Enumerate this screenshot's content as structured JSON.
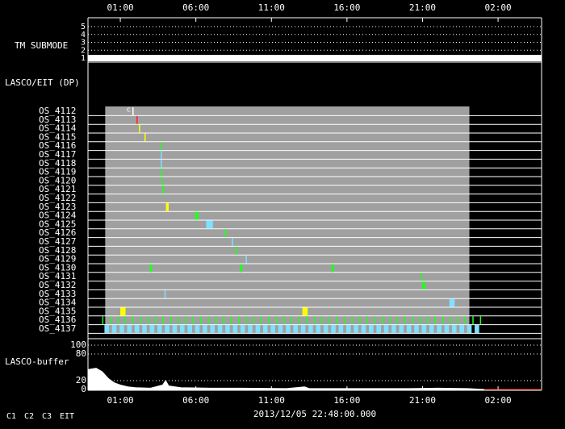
{
  "chart_data": {
    "type": "timeline",
    "xlabel": "2013/12/05 22:48:00.000",
    "xlim": [
      -1.14,
      28.88
    ],
    "xticks": [
      {
        "value": 1,
        "label": "01:00"
      },
      {
        "value": 6,
        "label": "06:00"
      },
      {
        "value": 11,
        "label": "11:00"
      },
      {
        "value": 16,
        "label": "16:00"
      },
      {
        "value": 21,
        "label": "21:00"
      },
      {
        "value": 26,
        "label": "02:00"
      }
    ],
    "legend": [
      {
        "name": "C1",
        "color": "#ff3030"
      },
      {
        "name": "C2",
        "color": "#30ff30"
      },
      {
        "name": "C3",
        "color": "#80e0ff"
      },
      {
        "name": "EIT",
        "color": "#ffffff"
      }
    ],
    "panels": [
      {
        "type": "step",
        "label": "TM SUBMODE",
        "ylim": [
          1,
          5
        ],
        "yticks": [
          1,
          2,
          3,
          4,
          5
        ],
        "color": "#ffffff",
        "x": [
          -1.14,
          28.88
        ],
        "values": [
          1,
          1
        ]
      },
      {
        "type": "events",
        "label": "LASCO/EIT (DP)",
        "shade": [
          0,
          24.1
        ],
        "rows": [
          {
            "name": "OS_4112",
            "color": "#ffffff",
            "duration": 0.05,
            "starts": [
              1.8
            ],
            "mark_label": "c"
          },
          {
            "name": "OS_4113",
            "color": "#ff2020",
            "duration": 0.08,
            "starts": [
              2.07
            ]
          },
          {
            "name": "OS_4114",
            "color": "#ffff00",
            "duration": 0.08,
            "starts": [
              2.23
            ]
          },
          {
            "name": "OS_4115",
            "color": "#ffff00",
            "duration": 0.05,
            "starts": [
              2.6
            ]
          },
          {
            "name": "OS_4116",
            "color": "#20ff20",
            "duration": 0.06,
            "starts": [
              3.67
            ]
          },
          {
            "name": "OS_4117",
            "color": "#80e0ff",
            "duration": 0.05,
            "starts": [
              3.68
            ]
          },
          {
            "name": "OS_4118",
            "color": "#80e0ff",
            "duration": 0.05,
            "starts": [
              3.68
            ]
          },
          {
            "name": "OS_4119",
            "color": "#20ff20",
            "duration": 0.05,
            "starts": [
              3.7
            ]
          },
          {
            "name": "OS_4120",
            "color": "#20ff20",
            "duration": 0.05,
            "starts": [
              3.72
            ]
          },
          {
            "name": "OS_4121",
            "color": "#20ff20",
            "duration": 0.1,
            "starts": [
              3.8
            ]
          },
          {
            "name": "OS_4122",
            "color": "#20ff20",
            "duration": 0.1,
            "starts": []
          },
          {
            "name": "OS_4123",
            "color": "#ffff00",
            "duration": 0.18,
            "starts": [
              4.02
            ]
          },
          {
            "name": "OS_4124",
            "color": "#20ff20",
            "duration": 0.22,
            "starts": [
              5.95
            ]
          },
          {
            "name": "OS_4125",
            "color": "#80e0ff",
            "duration": 0.45,
            "starts": [
              6.68
            ]
          },
          {
            "name": "OS_4126",
            "color": "#20ff20",
            "duration": 0.1,
            "starts": [
              7.92
            ]
          },
          {
            "name": "OS_4127",
            "color": "#80e0ff",
            "duration": 0.08,
            "starts": [
              8.38
            ]
          },
          {
            "name": "OS_4128",
            "color": "#20ff20",
            "duration": 0.1,
            "starts": [
              8.62
            ]
          },
          {
            "name": "OS_4129",
            "color": "#80e0ff",
            "duration": 0.06,
            "starts": [
              9.3
            ]
          },
          {
            "name": "OS_4130",
            "color": "#20ff20",
            "duration": 0.15,
            "starts": [
              2.95,
              8.92,
              14.98
            ]
          },
          {
            "name": "OS_4131",
            "color": "#20ff20",
            "duration": 0.06,
            "starts": [
              20.9
            ]
          },
          {
            "name": "OS_4132",
            "color": "#20ff20",
            "duration": 0.2,
            "starts": [
              20.98
            ]
          },
          {
            "name": "OS_4133",
            "color": "#80e0ff",
            "duration": 0.08,
            "starts": [
              3.92
            ]
          },
          {
            "name": "OS_4134",
            "color": "#80e0ff",
            "duration": 0.35,
            "starts": [
              22.78
            ]
          },
          {
            "name": "OS_4135",
            "color": "#ffff00",
            "duration": 0.35,
            "starts": [
              1.0,
              13.05
            ]
          },
          {
            "name": "OS_4136",
            "color": "#20ff20",
            "duration": 0.08,
            "starts": [
              -0.2,
              0.3,
              0.8,
              1.3,
              1.8,
              2.3,
              2.8,
              3.3,
              3.8,
              4.3,
              4.8,
              5.3,
              5.8,
              6.3,
              6.8,
              7.3,
              7.8,
              8.3,
              8.8,
              9.3,
              9.8,
              10.3,
              10.8,
              11.3,
              11.8,
              12.3,
              12.8,
              13.3,
              13.8,
              14.3,
              14.8,
              15.3,
              15.8,
              16.3,
              16.8,
              17.3,
              17.8,
              18.3,
              18.8,
              19.3,
              19.8,
              20.3,
              20.8,
              21.3,
              21.8,
              22.3,
              22.8,
              23.3,
              23.8,
              24.3,
              24.8
            ]
          },
          {
            "name": "OS_4137",
            "color": "#80e0ff",
            "duration": 0.3,
            "starts": [
              -0.05,
              0.45,
              0.95,
              1.45,
              1.95,
              2.45,
              2.95,
              3.45,
              3.95,
              4.45,
              4.95,
              5.45,
              5.95,
              6.45,
              6.95,
              7.45,
              7.95,
              8.45,
              8.95,
              9.45,
              9.95,
              10.45,
              10.95,
              11.45,
              11.95,
              12.45,
              12.95,
              13.45,
              13.95,
              14.45,
              14.95,
              15.45,
              15.95,
              16.45,
              16.95,
              17.45,
              17.95,
              18.45,
              18.95,
              19.45,
              19.95,
              20.45,
              20.95,
              21.45,
              21.95,
              22.45,
              22.95,
              23.45,
              23.95,
              24.45
            ]
          }
        ]
      },
      {
        "type": "area",
        "label": "LASCO-buffer",
        "ylim": [
          0,
          100
        ],
        "yticks": [
          0,
          20,
          80,
          100
        ],
        "series": [
          {
            "color": "#ffffff",
            "x": [
              -1.14,
              -0.6,
              -0.2,
              0.2,
              0.6,
              1.0,
              1.5,
              2.0,
              3.0,
              3.8,
              4.0,
              4.2,
              5.0,
              7.0,
              9.0,
              12.0,
              13.2,
              13.5,
              16.0,
              20.0,
              22.0,
              24.0,
              25.1
            ],
            "values": [
              45,
              48,
              40,
              25,
              15,
              10,
              6,
              4,
              3,
              10,
              20,
              8,
              4,
              3,
              3,
              2,
              6,
              2,
              2,
              2,
              3,
              2,
              0
            ]
          },
          {
            "color": "#ff2020",
            "x": [
              25.1,
              28.88
            ],
            "values": [
              0,
              0
            ]
          }
        ]
      }
    ]
  }
}
